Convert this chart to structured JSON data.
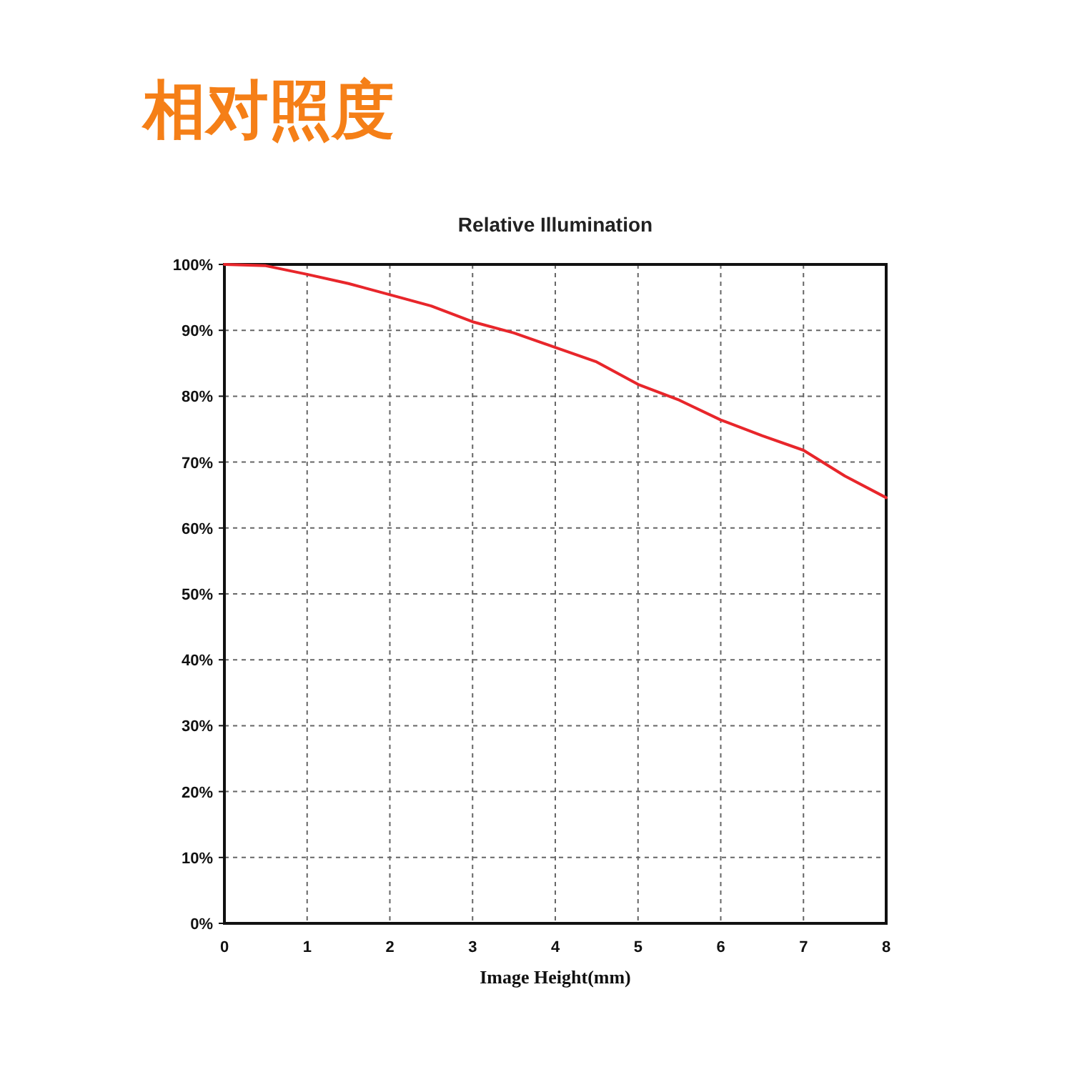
{
  "chart_data": {
    "type": "line",
    "title": "相对照度",
    "subtitle": "Relative Illumination",
    "xlabel": "Image Height(mm)",
    "x": [
      0,
      0.5,
      1,
      1.5,
      2,
      2.5,
      3,
      3.5,
      4,
      4.5,
      5,
      5.5,
      6,
      6.5,
      7,
      7.5,
      8
    ],
    "series": [
      {
        "color": "#e8262b",
        "values": [
          100,
          99.8,
          98.5,
          97.1,
          95.4,
          93.7,
          91.3,
          89.6,
          87.4,
          85.2,
          81.8,
          79.4,
          76.4,
          74.0,
          71.8,
          67.9,
          64.6
        ]
      }
    ],
    "xlim": [
      0,
      8
    ],
    "xticks": [
      0,
      1,
      2,
      3,
      4,
      5,
      6,
      7,
      8
    ],
    "ylim": [
      0,
      100
    ],
    "yticks": [
      {
        "value": 0,
        "label": "0%"
      },
      {
        "value": 10,
        "label": "10%"
      },
      {
        "value": 20,
        "label": "20%"
      },
      {
        "value": 30,
        "label": "30%"
      },
      {
        "value": 40,
        "label": "40%"
      },
      {
        "value": 50,
        "label": "50%"
      },
      {
        "value": 60,
        "label": "60%"
      },
      {
        "value": 70,
        "label": "70%"
      },
      {
        "value": 80,
        "label": "80%"
      },
      {
        "value": 90,
        "label": "90%"
      },
      {
        "value": 100,
        "label": "100%"
      }
    ],
    "grid": true,
    "line_style": "solid"
  }
}
